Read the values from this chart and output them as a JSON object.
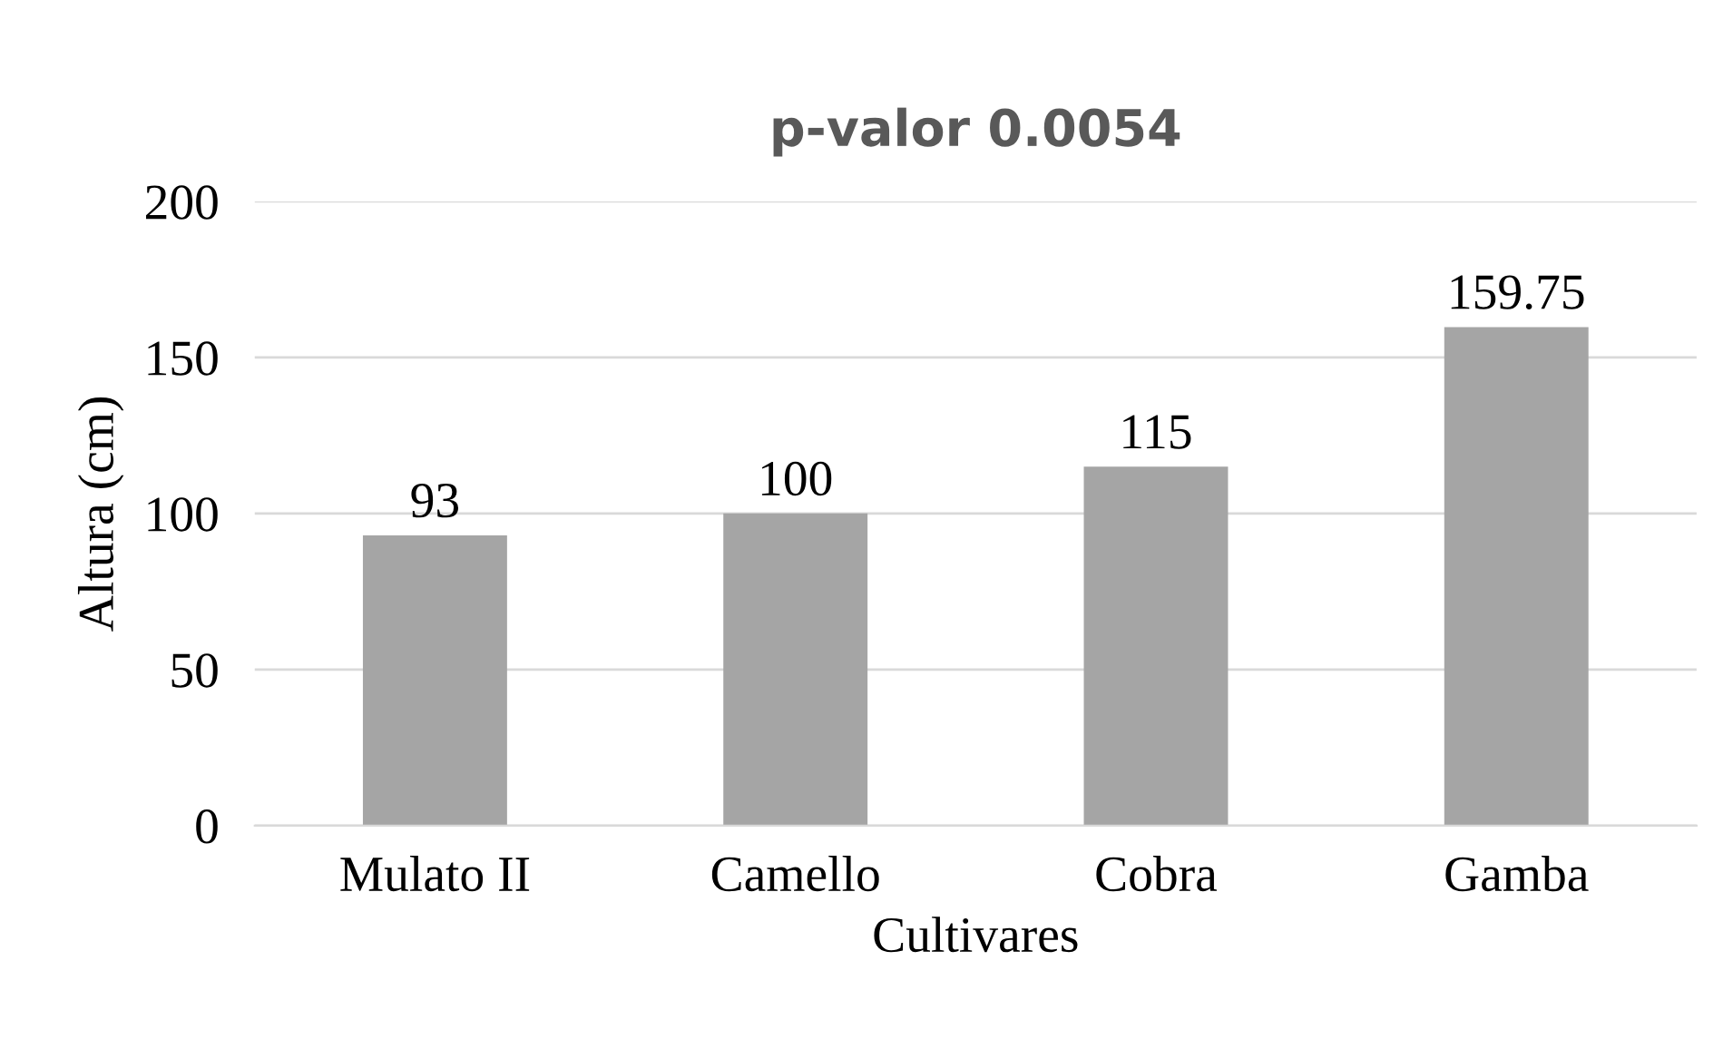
{
  "chart_data": {
    "type": "bar",
    "title": "p-valor 0.0054",
    "xlabel": "Cultivares",
    "ylabel": "Altura (cm)",
    "categories": [
      "Mulato II",
      "Camello",
      "Cobra",
      "Gamba"
    ],
    "values": [
      93,
      100,
      115,
      159.75
    ],
    "color": "#a5a5a5",
    "ylim": [
      0,
      200
    ],
    "yticks": [
      0,
      50,
      100,
      150,
      200
    ],
    "grid": "y",
    "data_labels": true
  }
}
